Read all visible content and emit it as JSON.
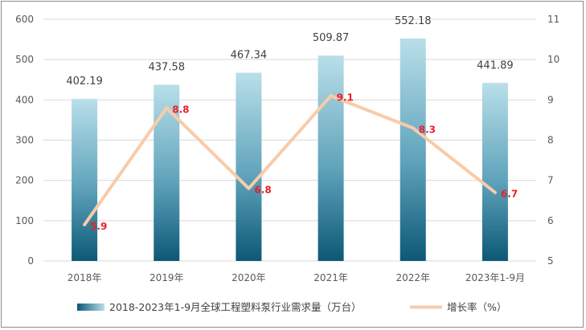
{
  "chart_data": {
    "type": "bar",
    "categories": [
      "2018年",
      "2019年",
      "2020年",
      "2021年",
      "2022年",
      "2023年1-9月"
    ],
    "series": [
      {
        "name": "2018-2023年1-9月全球工程塑料泵行业需求量（万台）",
        "type": "bar",
        "axis": "left",
        "values": [
          402.19,
          437.58,
          467.34,
          509.87,
          552.18,
          441.89
        ],
        "labels": [
          "402.19",
          "437.58",
          "467.34",
          "509.87",
          "552.18",
          "441.89"
        ]
      },
      {
        "name": "增长率（%）",
        "type": "line",
        "axis": "right",
        "values": [
          5.9,
          8.8,
          6.8,
          9.1,
          8.3,
          6.7
        ],
        "labels": [
          "5.9",
          "8.8",
          "6.8",
          "9.1",
          "8.3",
          "6.7"
        ]
      }
    ],
    "y_left": {
      "min": 0,
      "max": 600,
      "step": 100,
      "ticks": [
        "0",
        "100",
        "200",
        "300",
        "400",
        "500",
        "600"
      ]
    },
    "y_right": {
      "min": 5,
      "max": 11,
      "step": 1,
      "ticks": [
        "5",
        "6",
        "7",
        "8",
        "9",
        "10",
        "11"
      ]
    },
    "grid": true,
    "legend": "bottom",
    "colors": {
      "bar_top": "#b9dfe9",
      "bar_bottom": "#0c5876",
      "line": "#f8cba9",
      "line_label": "#e8202a",
      "grid": "#d9d9d9"
    }
  }
}
